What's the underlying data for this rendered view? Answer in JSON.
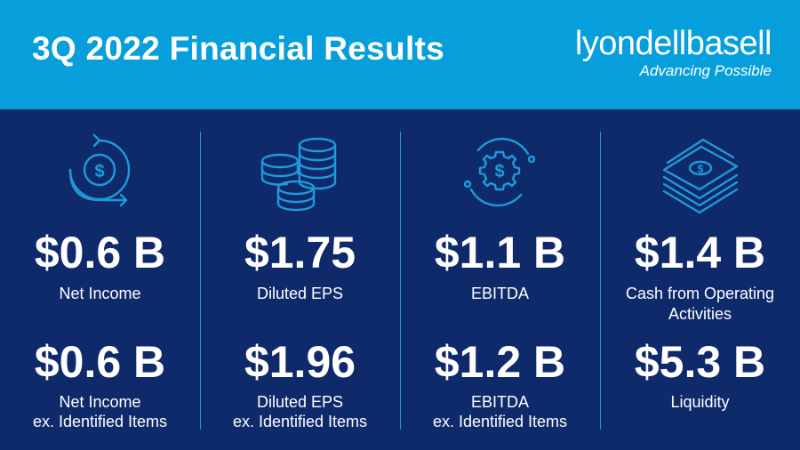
{
  "header": {
    "title": "3Q 2022 Financial Results",
    "logo_text": "lyondellbasell",
    "tagline": "Advancing Possible"
  },
  "colors": {
    "header_bg": "#079fdb",
    "main_bg": "#0f2a6b",
    "accent": "#1d9bd9",
    "text": "#ffffff"
  },
  "metrics": [
    {
      "icon": "dollar-circular-arrows-icon",
      "value1": "$0.6 B",
      "label1": "Net Income",
      "value2": "$0.6 B",
      "label2a": "Net Income",
      "label2b": "ex. Identified Items"
    },
    {
      "icon": "coin-stacks-icon",
      "value1": "$1.75",
      "label1": "Diluted EPS",
      "value2": "$1.96",
      "label2a": "Diluted EPS",
      "label2b": "ex. Identified Items"
    },
    {
      "icon": "dollar-gear-icon",
      "value1": "$1.1 B",
      "label1": "EBITDA",
      "value2": "$1.2 B",
      "label2a": "EBITDA",
      "label2b": "ex. Identified Items"
    },
    {
      "icon": "cash-stack-icon",
      "value1": "$1.4 B",
      "label1a": "Cash from Operating",
      "label1b": "Activities",
      "value2": "$5.3 B",
      "label2a": "Liquidity"
    }
  ]
}
